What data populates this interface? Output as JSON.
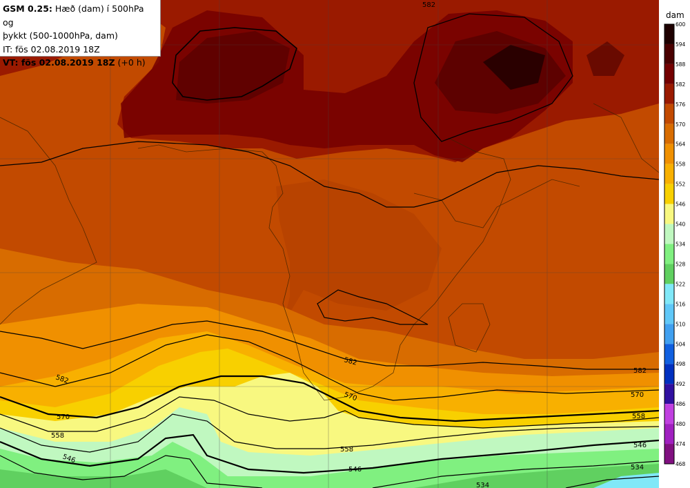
{
  "header": {
    "model": "GSM 0.25:",
    "title_rest": " Hæð (dam) í 500hPa og",
    "title_line2": "þykkt (500-1000hPa, dam)",
    "it_line": "IT: fös 02.08.2019 18Z",
    "vt_bold": "VT: fös 02.08.2019 18Z",
    "vt_suffix": " (+0 h)"
  },
  "legend": {
    "unit": "dam",
    "levels": [
      600,
      594,
      588,
      582,
      576,
      570,
      564,
      558,
      552,
      546,
      540,
      534,
      528,
      522,
      516,
      510,
      504,
      498,
      492,
      486,
      480,
      474,
      468
    ],
    "colors": [
      "#1e0000",
      "#4a0000",
      "#740000",
      "#9a1a00",
      "#c24a00",
      "#d86c00",
      "#f09000",
      "#f8b000",
      "#f8d000",
      "#f8f880",
      "#c0f8c0",
      "#80f080",
      "#60d060",
      "#80e8f8",
      "#60c8f8",
      "#40a0f0",
      "#1060e0",
      "#0030c0",
      "#3010a0",
      "#c040e0",
      "#a020c0",
      "#801080",
      "#500050"
    ]
  },
  "contours": {
    "labels": [
      "582",
      "582",
      "582",
      "570",
      "570",
      "558",
      "558",
      "546",
      "546",
      "534",
      "582",
      "570",
      "558",
      "546",
      "534",
      "534"
    ]
  },
  "icons": {
    "coastline": "coastline-lines",
    "grid": "lat-lon-grid"
  }
}
